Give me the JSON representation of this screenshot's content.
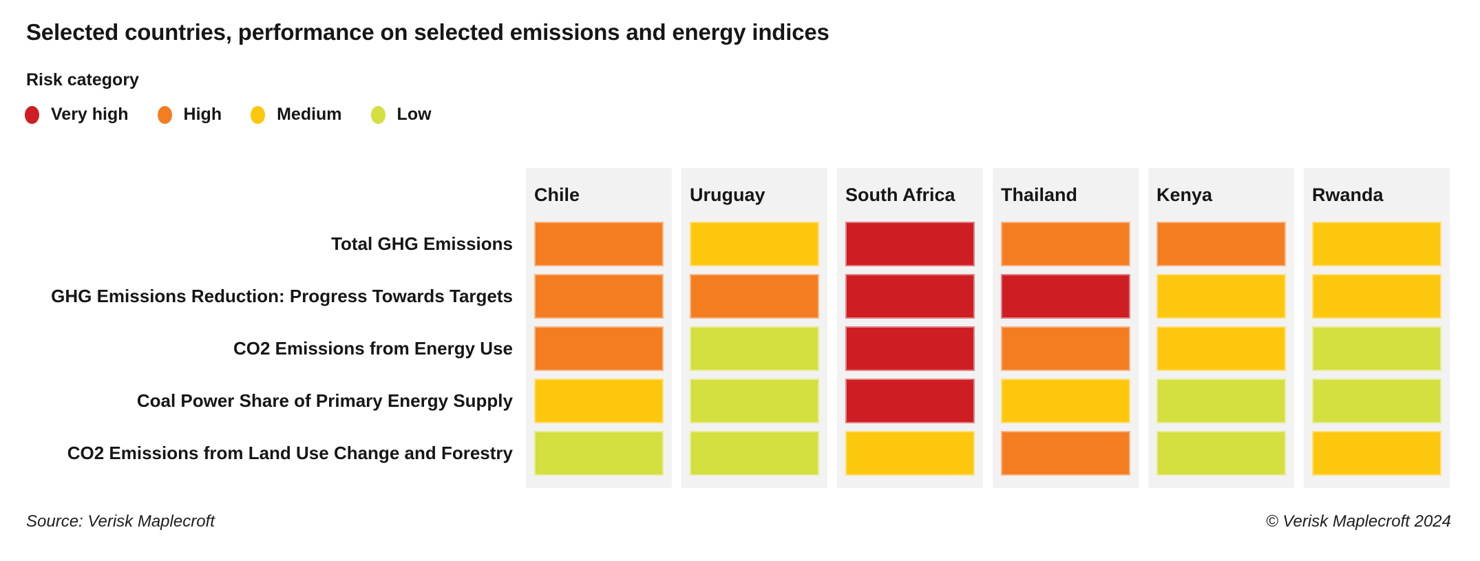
{
  "title": "Selected countries, performance on selected emissions and energy indices",
  "legend": {
    "label": "Risk category",
    "items": [
      {
        "label": "Very high",
        "color": "#ce1d23"
      },
      {
        "label": "High",
        "color": "#f47d22"
      },
      {
        "label": "Medium",
        "color": "#fdc70d"
      },
      {
        "label": "Low",
        "color": "#d4df40"
      }
    ]
  },
  "footer": {
    "source": "Source: Verisk Maplecroft",
    "copyright": "© Verisk Maplecroft 2024"
  },
  "chart_data": {
    "type": "heatmap",
    "title": "Selected countries, performance on selected emissions and energy indices",
    "legend_title": "Risk category",
    "risk_scale": [
      "Very high",
      "High",
      "Medium",
      "Low"
    ],
    "columns": [
      "Chile",
      "Uruguay",
      "South Africa",
      "Thailand",
      "Kenya",
      "Rwanda"
    ],
    "rows": [
      "Total GHG Emissions",
      "GHG Emissions Reduction: Progress Towards Targets",
      "CO2 Emissions from Energy Use",
      "Coal Power Share of Primary Energy Supply",
      "CO2 Emissions from Land Use Change and Forestry"
    ],
    "values": [
      [
        "High",
        "Medium",
        "Very high",
        "High",
        "High",
        "Medium"
      ],
      [
        "High",
        "High",
        "Very high",
        "Very high",
        "Medium",
        "Medium"
      ],
      [
        "High",
        "Low",
        "Very high",
        "High",
        "Medium",
        "Low"
      ],
      [
        "Medium",
        "Low",
        "Very high",
        "Medium",
        "Low",
        "Low"
      ],
      [
        "Low",
        "Low",
        "Medium",
        "High",
        "Low",
        "Medium"
      ]
    ],
    "colors": {
      "Very high": "#ce1d23",
      "High": "#f47d22",
      "Medium": "#fdc70d",
      "Low": "#d4df40"
    },
    "panel_background": "#f2f2f2",
    "legend_position": "top-left",
    "grid": false
  }
}
